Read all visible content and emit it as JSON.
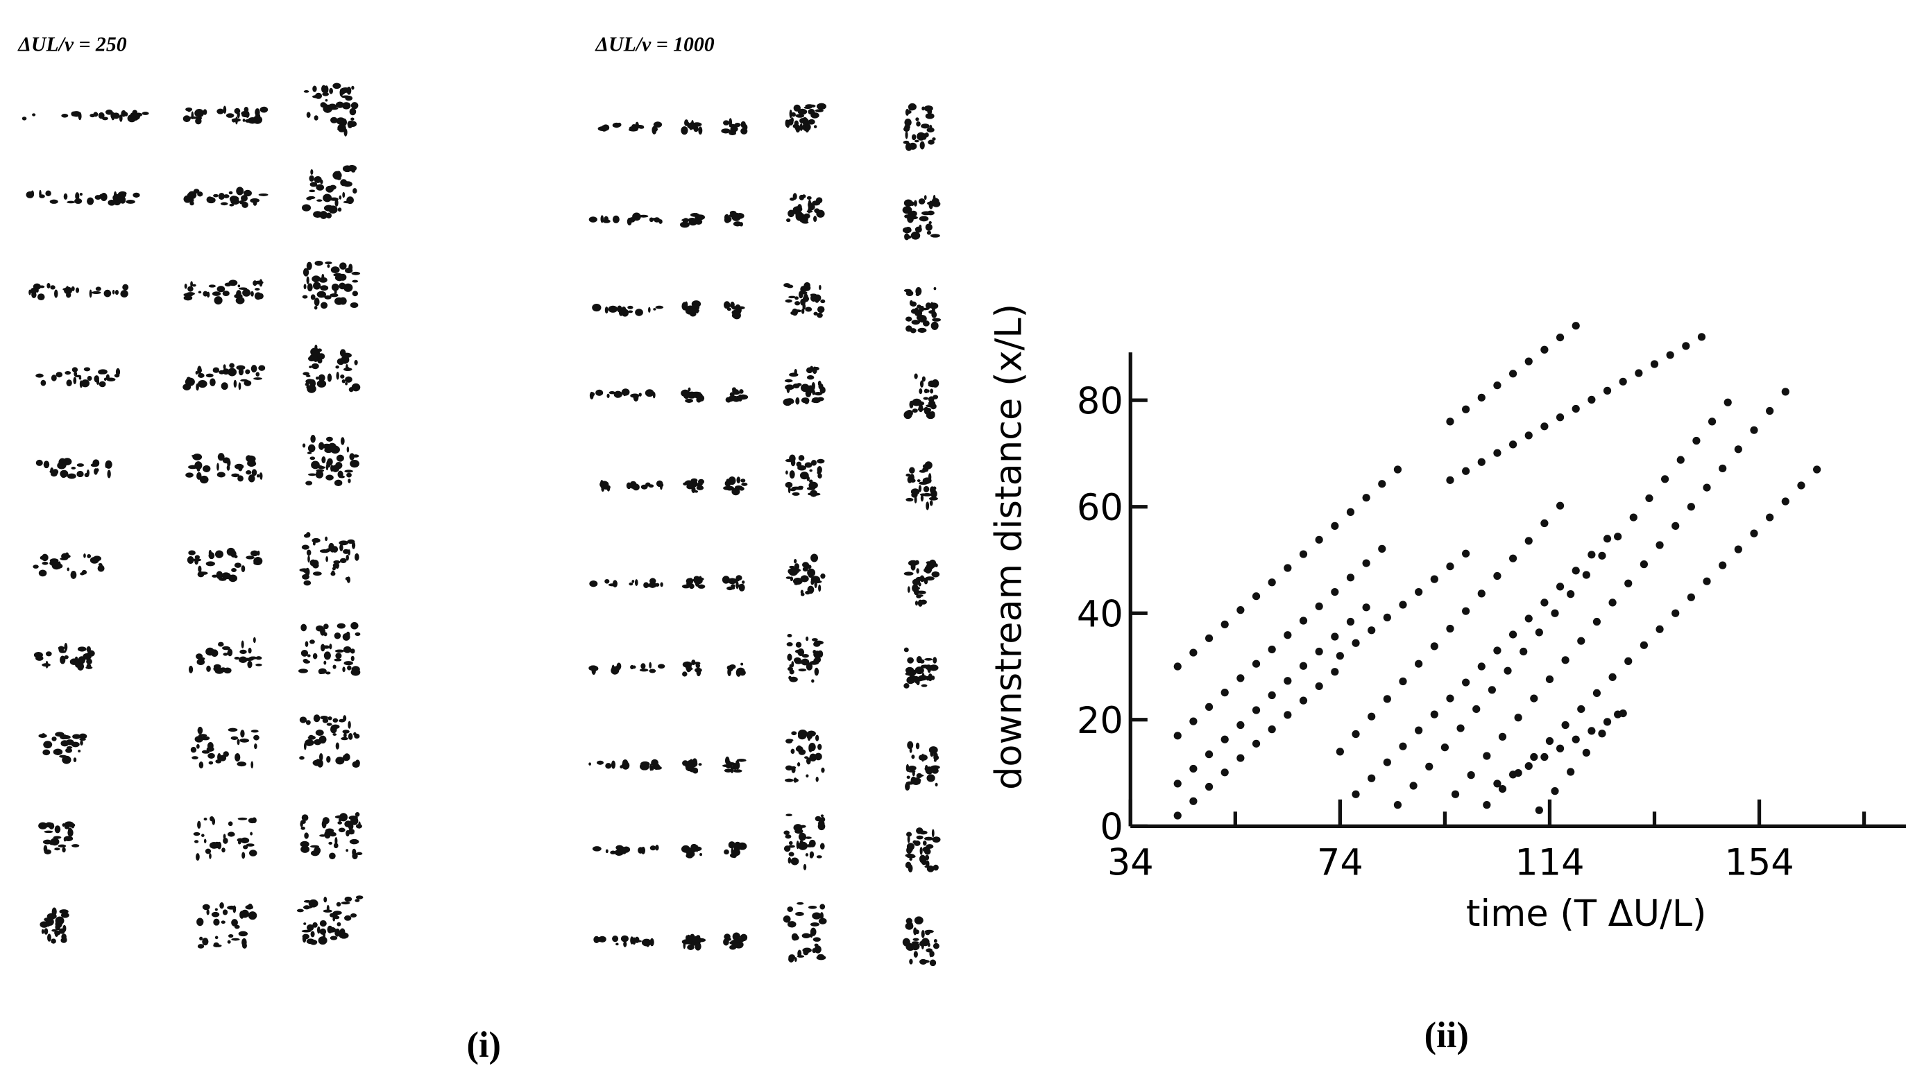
{
  "panel_i": {
    "label": "(i)",
    "left_title": "ΔUL/ν = 250",
    "right_title": "ΔUL/ν = 1000"
  },
  "chart_data": {
    "type": "scatter",
    "label": "(ii)",
    "x_label": "time (T ΔU/L)",
    "y_label": "downstream distance (x/L)",
    "xlim": [
      34,
      182
    ],
    "ylim": [
      0,
      89
    ],
    "xticks": [
      34,
      74,
      114,
      154
    ],
    "xminorticks": [
      54,
      94,
      134,
      174
    ],
    "yticks": [
      0,
      20,
      40,
      60,
      80
    ],
    "color": "#111",
    "series": [
      {
        "x": [
          43,
          46,
          49,
          52,
          55,
          58,
          61,
          64,
          67,
          70,
          73,
          76,
          79,
          82,
          85
        ],
        "values": [
          30,
          32.6,
          35.3,
          37.9,
          40.6,
          43.2,
          45.8,
          48.5,
          51.1,
          53.8,
          56.4,
          59,
          61.7,
          64.3,
          67
        ]
      },
      {
        "x": [
          43,
          46,
          49,
          52,
          55,
          58,
          61,
          64,
          67,
          70,
          73,
          76,
          79,
          82
        ],
        "values": [
          17,
          19.7,
          22.4,
          25.1,
          27.8,
          30.5,
          33.2,
          35.9,
          38.6,
          41.3,
          44,
          46.7,
          49.4,
          52.1
        ]
      },
      {
        "x": [
          43,
          46,
          49,
          52,
          55,
          58,
          61,
          64,
          67,
          70,
          73,
          76,
          79
        ],
        "values": [
          8,
          10.8,
          13.5,
          16.3,
          19,
          21.8,
          24.6,
          27.3,
          30.1,
          32.8,
          35.6,
          38.4,
          41.1
        ]
      },
      {
        "x": [
          43,
          46,
          49,
          52,
          55,
          58,
          61,
          64,
          67,
          70,
          73
        ],
        "values": [
          2,
          4.7,
          7.4,
          10.1,
          12.8,
          15.5,
          18.2,
          20.9,
          23.6,
          26.3,
          29
        ]
      },
      {
        "x": [
          95,
          98,
          101,
          104,
          107,
          110,
          113,
          116,
          119
        ],
        "values": [
          76,
          78.3,
          80.5,
          82.8,
          85,
          87.3,
          89.5,
          91.8,
          94
        ]
      },
      {
        "x": [
          95,
          98,
          101,
          104,
          107,
          110,
          113,
          116,
          119,
          122,
          125,
          128,
          131,
          134,
          137,
          140,
          143
        ],
        "values": [
          65,
          66.7,
          68.4,
          70.1,
          71.7,
          73.4,
          75.1,
          76.8,
          78.4,
          80.1,
          81.8,
          83.5,
          85.1,
          86.8,
          88.5,
          90.2,
          91.9
        ]
      },
      {
        "x": [
          74,
          77,
          80,
          83,
          86,
          89,
          92,
          95,
          98
        ],
        "values": [
          32,
          34.4,
          36.8,
          39.2,
          41.6,
          44,
          46.4,
          48.8,
          51.2
        ]
      },
      {
        "x": [
          74,
          77,
          80,
          83,
          86,
          89,
          92,
          95,
          98,
          101,
          104,
          107,
          110,
          113,
          116
        ],
        "values": [
          14,
          17.3,
          20.6,
          23.9,
          27.2,
          30.5,
          33.8,
          37.1,
          40.4,
          43.7,
          47,
          50.3,
          53.6,
          56.9,
          60.2
        ]
      },
      {
        "x": [
          77,
          80,
          83,
          86,
          89,
          92,
          95,
          98,
          101,
          104,
          107,
          110,
          113,
          116,
          119,
          122,
          125
        ],
        "values": [
          6,
          9,
          12,
          15,
          18,
          21,
          24,
          27,
          30,
          33,
          36,
          39,
          42,
          45,
          48,
          51,
          54
        ]
      },
      {
        "x": [
          85,
          88,
          91,
          94,
          97,
          100,
          103,
          106,
          109,
          112,
          115,
          118,
          121,
          124,
          127,
          130,
          133,
          136,
          139,
          142,
          145,
          148
        ],
        "values": [
          4,
          7.6,
          11.2,
          14.8,
          18.4,
          22,
          25.6,
          29.2,
          32.8,
          36.4,
          40,
          43.6,
          47.2,
          50.8,
          54.4,
          58,
          61.6,
          65.2,
          68.8,
          72.4,
          76,
          79.6
        ]
      },
      {
        "x": [
          96,
          99,
          102,
          105,
          108,
          111,
          114,
          117,
          120,
          123,
          126,
          129,
          132,
          135,
          138,
          141,
          144,
          147,
          150,
          153,
          156,
          159
        ],
        "values": [
          6,
          9.6,
          13.2,
          16.8,
          20.4,
          24,
          27.6,
          31.2,
          34.8,
          38.4,
          42,
          45.6,
          49.2,
          52.8,
          56.4,
          60,
          63.6,
          67.2,
          70.8,
          74.4,
          78,
          81.6
        ]
      },
      {
        "x": [
          102,
          105,
          108,
          111,
          114,
          117,
          120,
          123,
          126,
          129,
          132,
          135,
          138,
          141,
          144,
          147,
          150,
          153,
          156,
          159,
          162,
          165
        ],
        "values": [
          4,
          7,
          10,
          13,
          16,
          19,
          22,
          25,
          28,
          31,
          34,
          37,
          40,
          43,
          46,
          49,
          52,
          55,
          58,
          61,
          64,
          67
        ]
      },
      {
        "x": [
          112,
          115,
          118,
          121,
          124,
          127
        ],
        "values": [
          3,
          6.6,
          10.2,
          13.8,
          17.4,
          21
        ]
      },
      {
        "x": [
          104,
          107,
          110,
          113,
          116,
          119,
          122,
          125,
          128
        ],
        "values": [
          8,
          9.7,
          11.3,
          13,
          14.6,
          16.3,
          17.9,
          19.6,
          21.2
        ]
      }
    ]
  }
}
